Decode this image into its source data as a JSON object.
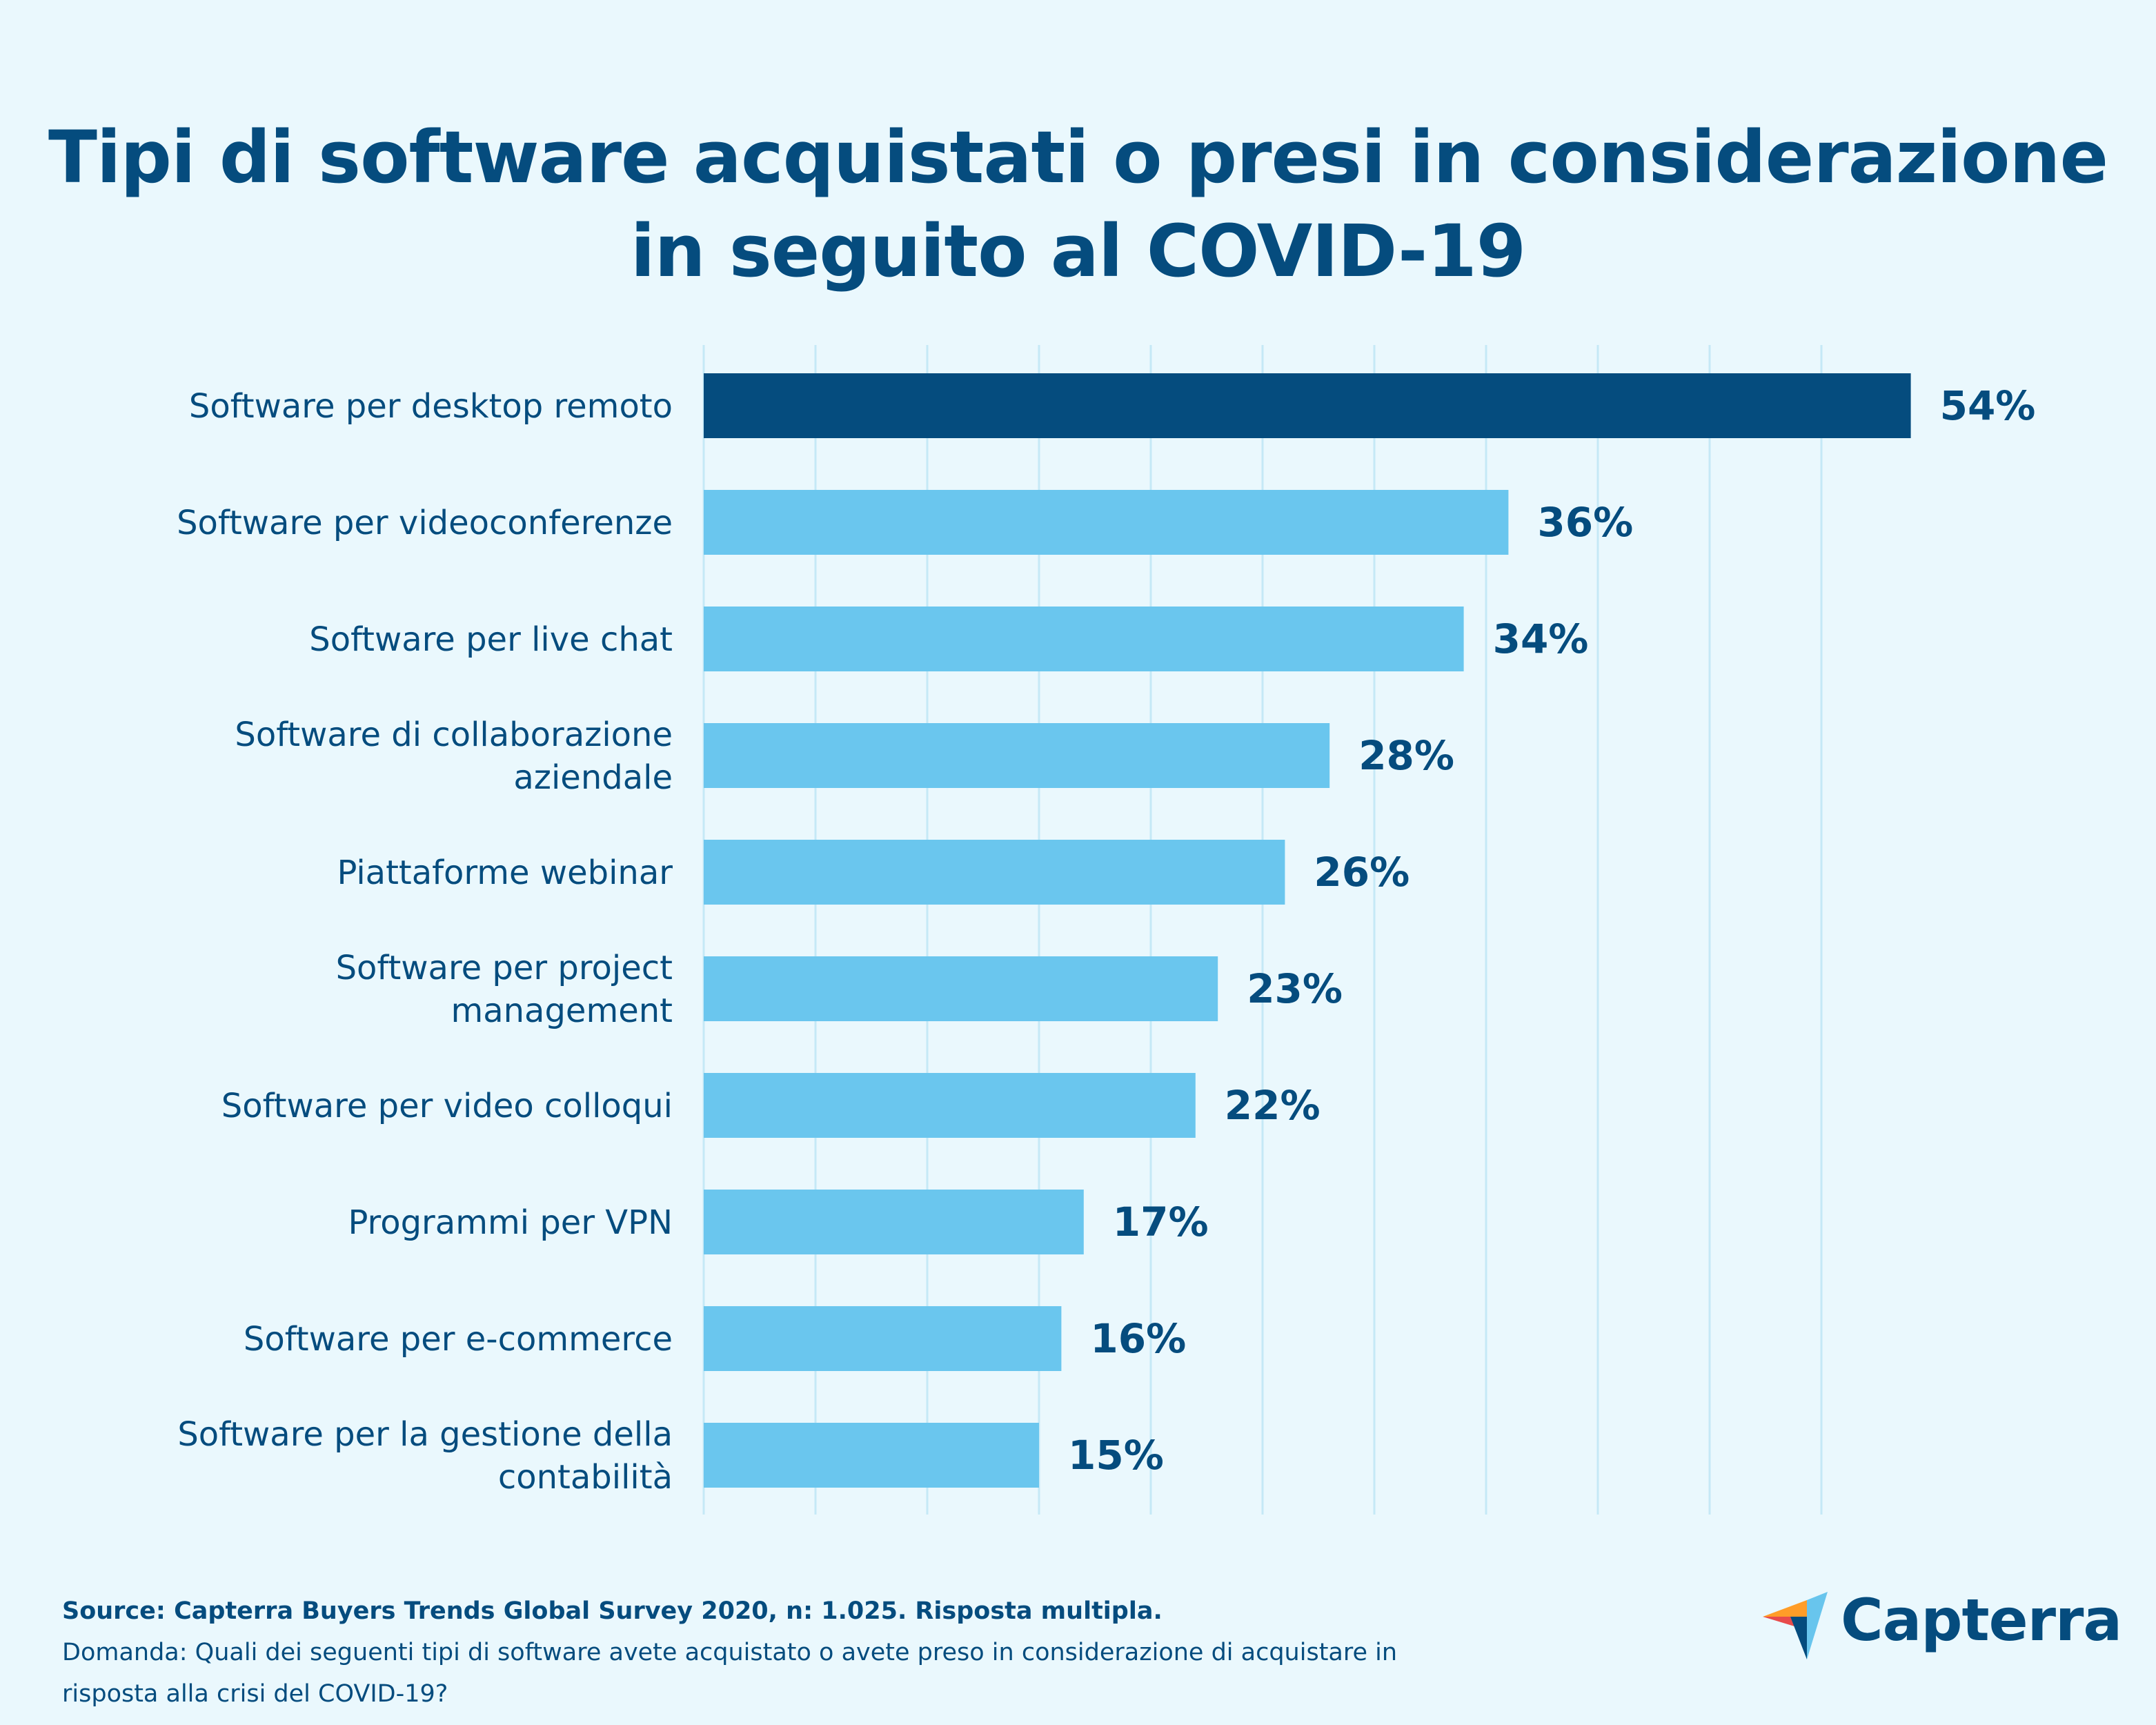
{
  "title": "Tipi di software acquistati o presi in considerazione in seguito al COVID-19",
  "chart_data": {
    "type": "bar",
    "orientation": "horizontal",
    "title": "Tipi di software acquistati o presi in considerazione in seguito al COVID-19",
    "categories": [
      [
        "Software per desktop remoto"
      ],
      [
        "Software per videoconferenze"
      ],
      [
        "Software per live chat"
      ],
      [
        "Software di collaborazione",
        "aziendale"
      ],
      [
        "Piattaforme webinar"
      ],
      [
        "Software per project",
        "management"
      ],
      [
        "Software per video colloqui"
      ],
      [
        "Programmi per VPN"
      ],
      [
        "Software per e-commerce"
      ],
      [
        "Software per la gestione della",
        "contabilità"
      ]
    ],
    "values": [
      54,
      36,
      34,
      28,
      26,
      23,
      22,
      17,
      16,
      15
    ],
    "value_labels": [
      "54%",
      "36%",
      "34%",
      "28%",
      "26%",
      "23%",
      "22%",
      "17%",
      "16%",
      "15%"
    ],
    "unit": "%",
    "xlim": [
      0,
      50
    ],
    "grid_step": 5,
    "grid": true,
    "highlight_index": 0,
    "colors": {
      "highlight": "#054c7e",
      "bar": "#6ac6ee",
      "grid": "#c5e9f6",
      "text": "#054c7e",
      "background": "#eaf8fd"
    }
  },
  "footer": {
    "source": "Source: Capterra Buyers Trends Global Survey 2020, n: 1.025. Risposta multipla.",
    "question_line1": "Domanda: Quali dei seguenti tipi di software avete acquistato o avete preso in considerazione di acquistare in",
    "question_line2": "risposta alla crisi del COVID-19?"
  },
  "logo": {
    "text": "Capterra",
    "icon": "capterra-arrow-logo",
    "colors": [
      "#ff9d28",
      "#e84b4b",
      "#68c5ed",
      "#054c7e"
    ]
  }
}
